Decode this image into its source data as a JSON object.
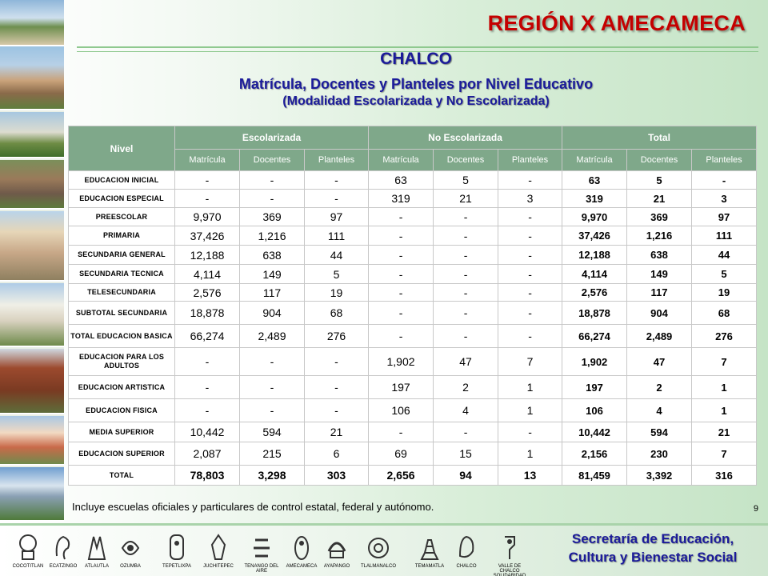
{
  "header": {
    "region": "REGIÓN X AMECAMECA",
    "city": "CHALCO",
    "title": "Matrícula, Docentes y Planteles por Nivel Educativo",
    "subtitle": "(Modalidad Escolarizada y No Escolarizada)"
  },
  "table": {
    "nivel_label": "Nivel",
    "groups": [
      "Escolarizada",
      "No Escolarizada",
      "Total"
    ],
    "subcolumns": [
      "Matrícula",
      "Docentes",
      "Planteles"
    ],
    "rows": [
      {
        "level": "EDUCACION INICIAL",
        "esc": [
          "-",
          "-",
          "-"
        ],
        "noesc": [
          "63",
          "5",
          "-"
        ],
        "total": [
          "63",
          "5",
          "-"
        ]
      },
      {
        "level": "EDUCACION ESPECIAL",
        "esc": [
          "-",
          "-",
          "-"
        ],
        "noesc": [
          "319",
          "21",
          "3"
        ],
        "total": [
          "319",
          "21",
          "3"
        ]
      },
      {
        "level": "PREESCOLAR",
        "esc": [
          "9,970",
          "369",
          "97"
        ],
        "noesc": [
          "-",
          "-",
          "-"
        ],
        "total": [
          "9,970",
          "369",
          "97"
        ]
      },
      {
        "level": "PRIMARIA",
        "esc": [
          "37,426",
          "1,216",
          "111"
        ],
        "noesc": [
          "-",
          "-",
          "-"
        ],
        "total": [
          "37,426",
          "1,216",
          "111"
        ]
      },
      {
        "level": "SECUNDARIA GENERAL",
        "esc": [
          "12,188",
          "638",
          "44"
        ],
        "noesc": [
          "-",
          "-",
          "-"
        ],
        "total": [
          "12,188",
          "638",
          "44"
        ]
      },
      {
        "level": "SECUNDARIA TECNICA",
        "esc": [
          "4,114",
          "149",
          "5"
        ],
        "noesc": [
          "-",
          "-",
          "-"
        ],
        "total": [
          "4,114",
          "149",
          "5"
        ]
      },
      {
        "level": "TELESECUNDARIA",
        "esc": [
          "2,576",
          "117",
          "19"
        ],
        "noesc": [
          "-",
          "-",
          "-"
        ],
        "total": [
          "2,576",
          "117",
          "19"
        ]
      },
      {
        "level": "SUBTOTAL SECUNDARIA",
        "esc": [
          "18,878",
          "904",
          "68"
        ],
        "noesc": [
          "-",
          "-",
          "-"
        ],
        "total": [
          "18,878",
          "904",
          "68"
        ]
      },
      {
        "level": "TOTAL EDUCACION BASICA",
        "esc": [
          "66,274",
          "2,489",
          "276"
        ],
        "noesc": [
          "-",
          "-",
          "-"
        ],
        "total": [
          "66,274",
          "2,489",
          "276"
        ]
      },
      {
        "level": "EDUCACION PARA LOS ADULTOS",
        "esc": [
          "-",
          "-",
          "-"
        ],
        "noesc": [
          "1,902",
          "47",
          "7"
        ],
        "total": [
          "1,902",
          "47",
          "7"
        ]
      },
      {
        "level": "EDUCACION ARTISTICA",
        "esc": [
          "-",
          "-",
          "-"
        ],
        "noesc": [
          "197",
          "2",
          "1"
        ],
        "total": [
          "197",
          "2",
          "1"
        ]
      },
      {
        "level": "EDUCACION FISICA",
        "esc": [
          "-",
          "-",
          "-"
        ],
        "noesc": [
          "106",
          "4",
          "1"
        ],
        "total": [
          "106",
          "4",
          "1"
        ]
      },
      {
        "level": "MEDIA SUPERIOR",
        "esc": [
          "10,442",
          "594",
          "21"
        ],
        "noesc": [
          "-",
          "-",
          "-"
        ],
        "total": [
          "10,442",
          "594",
          "21"
        ]
      },
      {
        "level": "EDUCACION SUPERIOR",
        "esc": [
          "2,087",
          "215",
          "6"
        ],
        "noesc": [
          "69",
          "15",
          "1"
        ],
        "total": [
          "2,156",
          "230",
          "7"
        ]
      },
      {
        "level": "TOTAL",
        "esc": [
          "78,803",
          "3,298",
          "303"
        ],
        "noesc": [
          "2,656",
          "94",
          "13"
        ],
        "total": [
          "81,459",
          "3,392",
          "316"
        ]
      }
    ]
  },
  "footnote": "Incluye escuelas oficiales y particulares de control estatal, federal y autónomo.",
  "page_number": "9",
  "footer": {
    "municipalities": [
      "COCOTITLAN",
      "ECATZINGO",
      "ATLAUTLA",
      "OZUMBA",
      "TEPETLIXPA",
      "JUCHITEPEC",
      "TENANGO DEL AIRE",
      "AMECAMECA",
      "AYAPANGO",
      "TLALMANALCO",
      "TEMAMATLA",
      "CHALCO",
      "VALLE DE CHALCO SOLIDARIDAD"
    ],
    "secretaria_line1": "Secretaría de Educación,",
    "secretaria_line2": "Cultura y Bienestar Social"
  },
  "colors": {
    "region_title": "#c40000",
    "titles": "#1b1b9a",
    "table_header": "#7fa88a"
  }
}
